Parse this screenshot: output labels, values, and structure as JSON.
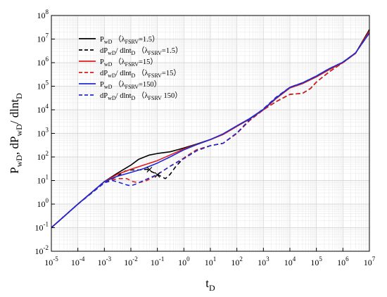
{
  "chart_data": {
    "type": "line",
    "xlabel": {
      "main": "t",
      "sub": "D"
    },
    "ylabel": [
      {
        "main": "P",
        "sub": "wD"
      },
      {
        "main": ", dP",
        "sub": "wD"
      },
      {
        "main": "/ dlnt",
        "sub": "D"
      }
    ],
    "xscale": "log",
    "yscale": "log",
    "xlim": [
      1e-05,
      10000000
    ],
    "ylim": [
      0.01,
      100000000
    ],
    "x_ticks": [
      {
        "base": "10",
        "exp": "-5"
      },
      {
        "base": "10",
        "exp": "-4"
      },
      {
        "base": "10",
        "exp": "-3"
      },
      {
        "base": "10",
        "exp": "-2"
      },
      {
        "base": "10",
        "exp": "-1"
      },
      {
        "base": "10",
        "exp": "0"
      },
      {
        "base": "10",
        "exp": "1"
      },
      {
        "base": "10",
        "exp": "2"
      },
      {
        "base": "10",
        "exp": "3"
      },
      {
        "base": "10",
        "exp": "4"
      },
      {
        "base": "10",
        "exp": "5"
      },
      {
        "base": "10",
        "exp": "6"
      },
      {
        "base": "10",
        "exp": "7"
      }
    ],
    "y_ticks": [
      {
        "base": "10",
        "exp": "-2"
      },
      {
        "base": "10",
        "exp": "-1"
      },
      {
        "base": "10",
        "exp": "0"
      },
      {
        "base": "10",
        "exp": "1"
      },
      {
        "base": "10",
        "exp": "2"
      },
      {
        "base": "10",
        "exp": "3"
      },
      {
        "base": "10",
        "exp": "4"
      },
      {
        "base": "10",
        "exp": "5"
      },
      {
        "base": "10",
        "exp": "6"
      },
      {
        "base": "10",
        "exp": "7"
      },
      {
        "base": "10",
        "exp": "8"
      }
    ],
    "grid": true,
    "legend_position": "top-left",
    "series": [
      {
        "legend": [
          {
            "t": "P",
            "s": ""
          },
          {
            "t": "wD",
            "s": "sub"
          },
          {
            "t": " （λ",
            "s": ""
          },
          {
            "t": "FSRV",
            "s": "sub"
          },
          {
            "t": "=1.5）",
            "s": ""
          }
        ],
        "color": "#000000",
        "dash": "solid",
        "x": [
          1e-05,
          0.0001,
          0.001,
          0.003,
          0.01,
          0.02,
          0.05,
          0.1,
          0.3,
          1,
          3,
          10,
          30,
          100,
          300,
          1000,
          3000,
          10000,
          30000,
          100000,
          300000,
          1000000,
          3000000,
          10000000
        ],
        "y": [
          0.1,
          1,
          9,
          20,
          45,
          80,
          120,
          140,
          165,
          240,
          350,
          550,
          900,
          2000,
          4000,
          10000,
          30000,
          85000,
          130000,
          250000,
          500000,
          1000000,
          2500000,
          25000000
        ]
      },
      {
        "legend": [
          {
            "t": "dP",
            "s": ""
          },
          {
            "t": "wD",
            "s": "sub"
          },
          {
            "t": "/ dlnt",
            "s": ""
          },
          {
            "t": "D",
            "s": "sub"
          },
          {
            "t": " （λ",
            "s": ""
          },
          {
            "t": "FSRV",
            "s": "sub"
          },
          {
            "t": "=1.5）",
            "s": ""
          }
        ],
        "color": "#000000",
        "dash": "dashed",
        "x": [
          1e-05,
          0.0001,
          0.001,
          0.003,
          0.006,
          0.01,
          0.02,
          0.04,
          0.06,
          0.1,
          0.2,
          0.3,
          0.5,
          1,
          3,
          10,
          30,
          100,
          300,
          1000,
          3000,
          10000,
          30000,
          60000,
          100000,
          300000,
          1000000,
          3000000,
          10000000
        ],
        "y": [
          0.1,
          1,
          8,
          15,
          25,
          28,
          28,
          30,
          24,
          18,
          12,
          18,
          40,
          90,
          200,
          300,
          380,
          1000,
          3500,
          10000,
          22000,
          45000,
          50000,
          80000,
          150000,
          400000,
          1000000,
          2500000,
          25000000
        ]
      },
      {
        "legend": [
          {
            "t": "P",
            "s": ""
          },
          {
            "t": "wD",
            "s": "sub"
          },
          {
            "t": " （λ",
            "s": ""
          },
          {
            "t": "FSRV",
            "s": "sub"
          },
          {
            "t": "=15）",
            "s": ""
          }
        ],
        "color": "#e31a1c",
        "dash": "solid",
        "x": [
          1e-05,
          0.0001,
          0.001,
          0.003,
          0.01,
          0.03,
          0.1,
          0.3,
          1,
          3,
          10,
          30,
          100,
          300,
          1000,
          3000,
          10000,
          30000,
          100000,
          300000,
          1000000,
          3000000,
          10000000
        ],
        "y": [
          0.1,
          1,
          9,
          18,
          30,
          45,
          70,
          120,
          220,
          340,
          540,
          900,
          2000,
          4000,
          10000,
          30000,
          85000,
          130000,
          250000,
          500000,
          1000000,
          2500000,
          22000000
        ]
      },
      {
        "legend": [
          {
            "t": "dP",
            "s": ""
          },
          {
            "t": "wD",
            "s": "sub"
          },
          {
            "t": "/ dlnt",
            "s": ""
          },
          {
            "t": "D",
            "s": "sub"
          },
          {
            "t": " （λ",
            "s": ""
          },
          {
            "t": "FSRV",
            "s": "sub"
          },
          {
            "t": "=15）",
            "s": ""
          }
        ],
        "color": "#e31a1c",
        "dash": "dashed",
        "x": [
          1e-05,
          0.0001,
          0.001,
          0.003,
          0.007,
          0.012,
          0.02,
          0.04,
          0.1,
          0.3,
          1,
          3,
          10,
          30,
          100,
          300,
          1000,
          3000,
          10000,
          30000,
          60000,
          100000,
          300000,
          1000000,
          3000000,
          10000000
        ],
        "y": [
          0.1,
          1,
          8,
          12,
          12,
          9,
          8,
          10,
          18,
          40,
          90,
          200,
          300,
          380,
          1000,
          3500,
          10000,
          22000,
          45000,
          50000,
          80000,
          150000,
          400000,
          1000000,
          2500000,
          22000000
        ]
      },
      {
        "legend": [
          {
            "t": "P",
            "s": ""
          },
          {
            "t": "wD",
            "s": "sub"
          },
          {
            "t": " （λ",
            "s": ""
          },
          {
            "t": "FSRV",
            "s": "sub"
          },
          {
            "t": "=150）",
            "s": ""
          }
        ],
        "color": "#1f2ad6",
        "dash": "solid",
        "x": [
          1e-05,
          0.0001,
          0.001,
          0.003,
          0.01,
          0.03,
          0.1,
          0.3,
          1,
          3,
          10,
          30,
          100,
          300,
          1000,
          3000,
          10000,
          30000,
          100000,
          300000,
          1000000,
          3000000,
          10000000
        ],
        "y": [
          0.1,
          1,
          9,
          15,
          22,
          32,
          55,
          100,
          200,
          330,
          550,
          950,
          2100,
          4200,
          10500,
          32000,
          90000,
          140000,
          270000,
          550000,
          1050000,
          2600000,
          18000000
        ]
      },
      {
        "legend": [
          {
            "t": "dP",
            "s": ""
          },
          {
            "t": "wD",
            "s": "sub"
          },
          {
            "t": "/ dlnt",
            "s": ""
          },
          {
            "t": "D",
            "s": "sub"
          },
          {
            "t": " （λ",
            "s": ""
          },
          {
            "t": "FSRV",
            "s": "sub"
          },
          {
            "t": "  150）",
            "s": ""
          }
        ],
        "color": "#1f2ad6",
        "dash": "dashed",
        "x": [
          1e-05,
          0.0001,
          0.001,
          0.002,
          0.004,
          0.007,
          0.01,
          0.015,
          0.03,
          0.1,
          0.3,
          1,
          3,
          10,
          30,
          100,
          300,
          1000,
          3000,
          10000,
          30000,
          100000,
          300000,
          1000000,
          3000000,
          10000000
        ],
        "y": [
          0.1,
          1,
          8,
          10,
          8,
          6.5,
          6,
          7,
          10,
          18,
          40,
          85,
          180,
          300,
          380,
          1050,
          3800,
          11000,
          34000,
          90000,
          140000,
          270000,
          550000,
          1050000,
          2600000,
          18000000
        ]
      }
    ],
    "annotations": [
      {
        "text": "×",
        "x": 0.05,
        "y": 30
      },
      {
        "text": "×",
        "x": 0.1,
        "y": 18
      }
    ]
  }
}
